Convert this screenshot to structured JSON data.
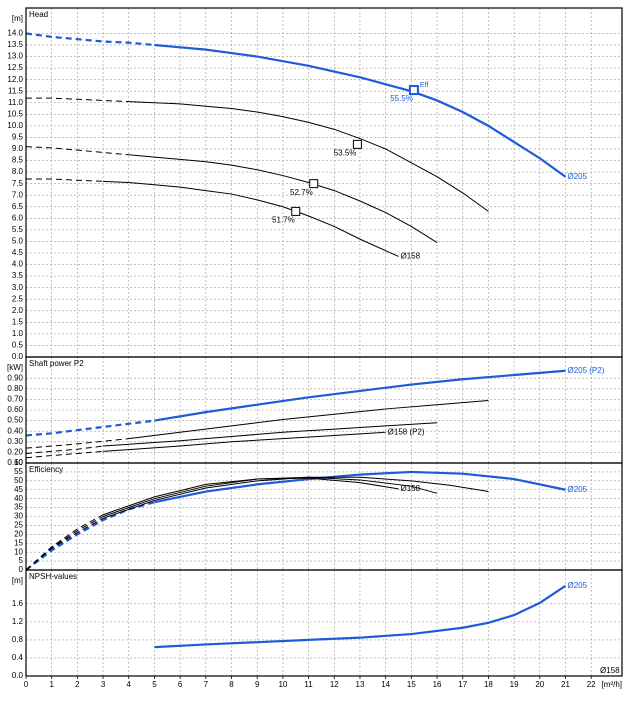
{
  "chart_data": [
    {
      "type": "line",
      "title": "Head",
      "y_unit": "[m]",
      "xlim": [
        0,
        23.2
      ],
      "ylim": [
        0,
        15.1
      ],
      "yticks": [
        {
          "value": 0,
          "label": "0.0"
        },
        0.5,
        {
          "value": 1,
          "label": "1.0"
        },
        1.5,
        {
          "value": 2,
          "label": "2.0"
        },
        2.5,
        {
          "value": 3,
          "label": "3.0"
        },
        3.5,
        {
          "value": 4,
          "label": "4.0"
        },
        4.5,
        {
          "value": 5,
          "label": "5.0"
        },
        5.5,
        {
          "value": 6,
          "label": "6.0"
        },
        6.5,
        {
          "value": 7,
          "label": "7.0"
        },
        7.5,
        {
          "value": 8,
          "label": "8.0"
        },
        8.5,
        {
          "value": 9,
          "label": "9.0"
        },
        9.5,
        {
          "value": 10,
          "label": "10.0"
        },
        10.5,
        {
          "value": 11,
          "label": "11.0"
        },
        11.5,
        {
          "value": 12,
          "label": "12.0"
        },
        12.5,
        {
          "value": 13,
          "label": "13.0"
        },
        13.5,
        {
          "value": 14,
          "label": "14.0"
        }
      ],
      "series": [
        {
          "color": "#1f5ad8",
          "label": "Ø205",
          "segments": [
            {
              "style": "dashed",
              "x": [
                0,
                1,
                2,
                3,
                4,
                5
              ],
              "values": [
                14.0,
                13.85,
                13.75,
                13.65,
                13.6,
                13.5
              ]
            },
            {
              "style": "solid",
              "x": [
                5,
                6,
                7,
                8,
                9,
                10,
                11,
                12,
                13,
                14,
                15,
                16,
                17,
                18,
                19,
                20,
                21
              ],
              "values": [
                13.5,
                13.4,
                13.3,
                13.15,
                13.0,
                12.8,
                12.6,
                12.35,
                12.1,
                11.8,
                11.5,
                11.1,
                10.6,
                10.0,
                9.3,
                8.6,
                7.8
              ]
            }
          ]
        },
        {
          "color": "#000000",
          "segments": [
            {
              "style": "dashed",
              "x": [
                0,
                1,
                2,
                3,
                4
              ],
              "values": [
                11.2,
                11.2,
                11.15,
                11.1,
                11.05
              ]
            },
            {
              "style": "solid",
              "x": [
                4,
                5,
                6,
                7,
                8,
                9,
                10,
                11,
                12,
                13,
                14,
                15,
                16,
                17,
                18
              ],
              "values": [
                11.05,
                11.0,
                10.95,
                10.85,
                10.75,
                10.6,
                10.4,
                10.15,
                9.85,
                9.45,
                9.0,
                8.4,
                7.8,
                7.1,
                6.3
              ]
            }
          ]
        },
        {
          "color": "#000000",
          "segments": [
            {
              "style": "dashed",
              "x": [
                0,
                1,
                2,
                3,
                4
              ],
              "values": [
                9.1,
                9.05,
                8.95,
                8.85,
                8.75
              ]
            },
            {
              "style": "solid",
              "x": [
                4,
                5,
                6,
                7,
                8,
                9,
                10,
                11,
                12,
                13,
                14,
                15,
                16
              ],
              "values": [
                8.75,
                8.65,
                8.55,
                8.45,
                8.3,
                8.1,
                7.85,
                7.55,
                7.2,
                6.75,
                6.25,
                5.65,
                4.95
              ]
            }
          ]
        },
        {
          "color": "#000000",
          "label": "Ø158",
          "segments": [
            {
              "style": "dashed",
              "x": [
                0,
                1,
                2,
                3
              ],
              "values": [
                7.7,
                7.7,
                7.65,
                7.6
              ]
            },
            {
              "style": "solid",
              "x": [
                3,
                4,
                5,
                6,
                7,
                8,
                9,
                10,
                11,
                12,
                13,
                14,
                14.5
              ],
              "values": [
                7.6,
                7.55,
                7.45,
                7.35,
                7.2,
                7.05,
                6.8,
                6.5,
                6.1,
                5.65,
                5.1,
                4.6,
                4.35
              ]
            }
          ]
        }
      ],
      "points": [
        {
          "x": 15.1,
          "value": 11.55,
          "color": "#1f5ad8",
          "label": "55.5%",
          "tag": "Eff"
        },
        {
          "x": 12.9,
          "value": 9.2,
          "color": "#000000",
          "label": "53.5%"
        },
        {
          "x": 11.2,
          "value": 7.5,
          "color": "#000000",
          "label": "52.7%"
        },
        {
          "x": 10.5,
          "value": 6.3,
          "color": "#000000",
          "label": "51.7%"
        }
      ]
    },
    {
      "type": "line",
      "title": "Shaft power P2",
      "y_unit": "[kW]",
      "xlim": [
        0,
        23.2
      ],
      "ylim": [
        0.1,
        1.1
      ],
      "yticks": [
        {
          "value": 0.1,
          "label": "0.10"
        },
        {
          "value": 0.2,
          "label": "0.20"
        },
        {
          "value": 0.3,
          "label": "0.30"
        },
        {
          "value": 0.4,
          "label": "0.40"
        },
        {
          "value": 0.5,
          "label": "0.50"
        },
        {
          "value": 0.6,
          "label": "0.60"
        },
        {
          "value": 0.7,
          "label": "0.70"
        },
        {
          "value": 0.8,
          "label": "0.80"
        },
        {
          "value": 0.9,
          "label": "0.90"
        }
      ],
      "series": [
        {
          "color": "#1f5ad8",
          "label": "Ø205 (P2)",
          "segments": [
            {
              "style": "dashed",
              "x": [
                0,
                1,
                2,
                3,
                4,
                5
              ],
              "values": [
                0.36,
                0.38,
                0.41,
                0.44,
                0.47,
                0.5
              ]
            },
            {
              "style": "solid",
              "x": [
                5,
                7,
                9,
                11,
                13,
                15,
                17,
                19,
                21
              ],
              "values": [
                0.5,
                0.58,
                0.65,
                0.72,
                0.78,
                0.84,
                0.89,
                0.93,
                0.97
              ]
            }
          ]
        },
        {
          "color": "#000000",
          "segments": [
            {
              "style": "dashed",
              "x": [
                0,
                2,
                4
              ],
              "values": [
                0.24,
                0.28,
                0.33
              ]
            },
            {
              "style": "solid",
              "x": [
                4,
                6,
                8,
                10,
                12,
                14,
                16,
                18
              ],
              "values": [
                0.33,
                0.39,
                0.45,
                0.51,
                0.56,
                0.61,
                0.65,
                0.69
              ]
            }
          ]
        },
        {
          "color": "#000000",
          "segments": [
            {
              "style": "dashed",
              "x": [
                0,
                2,
                3
              ],
              "values": [
                0.19,
                0.23,
                0.26
              ]
            },
            {
              "style": "solid",
              "x": [
                3,
                6,
                8,
                10,
                12,
                14,
                16
              ],
              "values": [
                0.26,
                0.31,
                0.35,
                0.39,
                0.42,
                0.45,
                0.48
              ]
            }
          ]
        },
        {
          "color": "#000000",
          "label": "Ø158 (P2)",
          "segments": [
            {
              "style": "dashed",
              "x": [
                0,
                2,
                3
              ],
              "values": [
                0.15,
                0.19,
                0.21
              ]
            },
            {
              "style": "solid",
              "x": [
                3,
                6,
                8,
                10,
                12,
                14
              ],
              "values": [
                0.21,
                0.26,
                0.3,
                0.33,
                0.36,
                0.39
              ]
            }
          ]
        }
      ]
    },
    {
      "type": "line",
      "title": "Efficiency",
      "xlim": [
        0,
        23.2
      ],
      "ylim": [
        0,
        60
      ],
      "yticks": [
        0,
        5,
        10,
        15,
        20,
        25,
        30,
        35,
        40,
        45,
        50,
        55,
        60
      ],
      "series": [
        {
          "color": "#1f5ad8",
          "label": "Ø205",
          "segments": [
            {
              "style": "dashed",
              "x": [
                0,
                1,
                2,
                3,
                4,
                5
              ],
              "values": [
                0,
                11,
                20,
                28,
                34,
                38
              ]
            },
            {
              "style": "solid",
              "x": [
                5,
                7,
                9,
                11,
                13,
                15,
                17,
                19,
                21
              ],
              "values": [
                38,
                44,
                48,
                51,
                53.5,
                55,
                54,
                51,
                45
              ]
            }
          ]
        },
        {
          "color": "#000000",
          "segments": [
            {
              "style": "dashed",
              "x": [
                0,
                1,
                2,
                3
              ],
              "values": [
                0,
                12,
                21,
                29
              ]
            },
            {
              "style": "solid",
              "x": [
                3,
                5,
                7,
                9,
                11,
                13,
                15,
                16.5,
                18
              ],
              "values": [
                29,
                39,
                46,
                50,
                52,
                52,
                50,
                47.5,
                44
              ]
            }
          ]
        },
        {
          "color": "#000000",
          "segments": [
            {
              "style": "dashed",
              "x": [
                0,
                1,
                2,
                3
              ],
              "values": [
                0,
                12.5,
                22,
                30
              ]
            },
            {
              "style": "solid",
              "x": [
                3,
                5,
                7,
                9,
                11,
                13,
                15,
                16
              ],
              "values": [
                30,
                40,
                47,
                51,
                52,
                50.5,
                47,
                43
              ]
            }
          ]
        },
        {
          "color": "#000000",
          "label": "Ø158",
          "segments": [
            {
              "style": "dashed",
              "x": [
                0,
                1,
                2,
                3
              ],
              "values": [
                0,
                13,
                23,
                31
              ]
            },
            {
              "style": "solid",
              "x": [
                3,
                5,
                7,
                9,
                11,
                13,
                14.5
              ],
              "values": [
                31,
                41,
                48,
                51,
                51.5,
                49,
                45.5
              ]
            }
          ]
        }
      ]
    },
    {
      "type": "line",
      "title": "NPSH-values",
      "y_unit": "[m]",
      "xlim": [
        0,
        23.2
      ],
      "ylim": [
        0,
        2.35
      ],
      "yticks": [
        {
          "value": 0,
          "label": "0.0"
        },
        0.4,
        0.8,
        1.2,
        1.6
      ],
      "xticks": [
        0,
        1,
        2,
        3,
        4,
        5,
        6,
        7,
        8,
        9,
        10,
        11,
        12,
        13,
        14,
        15,
        16,
        17,
        18,
        19,
        20,
        21,
        22
      ],
      "xlabel": "[m³/h]",
      "series": [
        {
          "color": "#1f5ad8",
          "label": "Ø205",
          "segments": [
            {
              "style": "solid",
              "x": [
                5,
                7,
                9,
                11,
                13,
                15,
                17,
                18,
                19,
                20,
                21
              ],
              "values": [
                0.64,
                0.7,
                0.75,
                0.8,
                0.85,
                0.93,
                1.07,
                1.18,
                1.35,
                1.62,
                2.0
              ]
            }
          ]
        },
        {
          "color": "#000000",
          "label": "Ø158",
          "segments": []
        }
      ]
    }
  ]
}
